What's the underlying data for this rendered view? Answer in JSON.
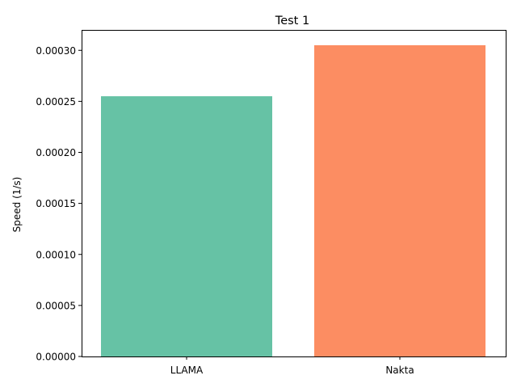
{
  "chart_data": {
    "type": "bar",
    "title": "Test 1",
    "xlabel": "",
    "ylabel": "Speed (1/s)",
    "categories": [
      "LLAMA",
      "Nakta"
    ],
    "values": [
      0.000255,
      0.000305
    ],
    "colors": [
      "#66c2a5",
      "#fc8d62"
    ],
    "ylim": [
      0,
      0.00032
    ],
    "yticks": [
      0,
      5e-05,
      0.0001,
      0.00015,
      0.0002,
      0.00025,
      0.0003
    ],
    "ytick_labels": [
      "0.00000",
      "0.00005",
      "0.00010",
      "0.00015",
      "0.00020",
      "0.00025",
      "0.00030"
    ],
    "grid": false,
    "legend": "none"
  }
}
